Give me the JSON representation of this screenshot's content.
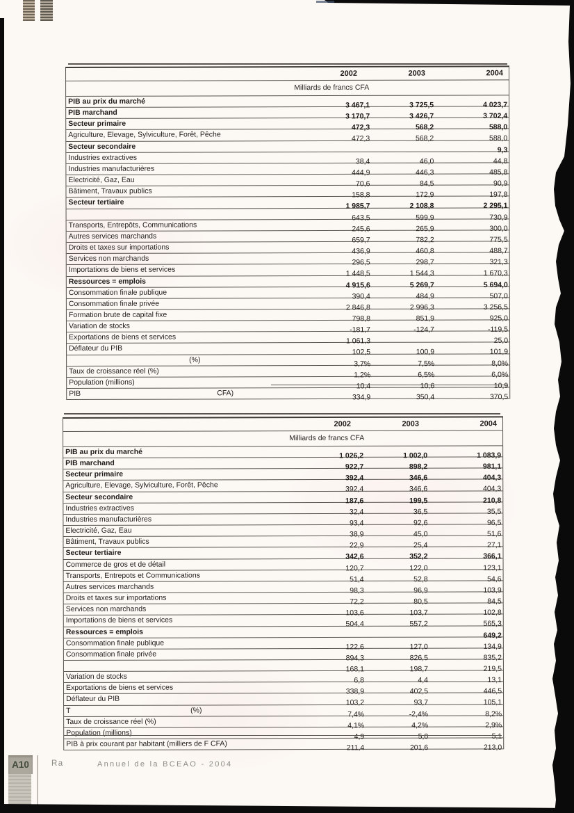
{
  "document": {
    "footer": {
      "page_number": "A10",
      "left_text": "Ra",
      "title_text": "Annuel de la BCEAO - 2004"
    }
  },
  "tables": [
    {
      "name": "comptes-nationaux-table-1",
      "years": [
        "2002",
        "2003",
        "2004"
      ],
      "unit": "Milliards de francs CFA",
      "rows": [
        {
          "label": "PIB au prix du marché",
          "bold": true,
          "values": [
            "3 467,1",
            "3 725,5",
            "4 023,7"
          ]
        },
        {
          "label": "PIB marchand",
          "bold": true,
          "values": [
            "3 170,7",
            "3 426,7",
            "3 702,4"
          ]
        },
        {
          "label": "Secteur primaire",
          "bold": true,
          "values": [
            "472,3",
            "568,2",
            "588,0"
          ]
        },
        {
          "label": "Agriculture, Elevage, Sylviculture,  Forêt, Pêche",
          "values": [
            "472,3",
            "568,2",
            "588,0"
          ]
        },
        {
          "label": "Secteur secondaire",
          "bold": true,
          "values": [
            "",
            "",
            "9,3"
          ]
        },
        {
          "label": "Industries extractives",
          "values": [
            "38,4",
            "46,0",
            "44,8"
          ]
        },
        {
          "label": "Industries manufacturières",
          "values": [
            "444,9",
            "446,3",
            "485,8"
          ]
        },
        {
          "label": "Electricité, Gaz, Eau",
          "values": [
            "70,6",
            "84,5",
            "90,9"
          ]
        },
        {
          "label": "Bâtiment, Travaux publics",
          "values": [
            "158,8",
            "172,9",
            "197,8"
          ]
        },
        {
          "label": "Secteur tertiaire",
          "bold": true,
          "values": [
            "1 985,7",
            "2 108,8",
            "2 295,1"
          ]
        },
        {
          "label": "",
          "values": [
            "643,5",
            "599,9",
            "730,9"
          ]
        },
        {
          "label": "Transports, Entrepôts, Communications",
          "values": [
            "245,6",
            "265,9",
            "300,0"
          ]
        },
        {
          "label": "Autres services marchands",
          "values": [
            "659,7",
            "782,2",
            "775,5"
          ]
        },
        {
          "label": "Droits et taxes sur importations",
          "values": [
            "436,9",
            "460,8",
            "488,7"
          ]
        },
        {
          "label": "Services non marchands",
          "values": [
            "296,5",
            "298,7",
            "321,3"
          ]
        },
        {
          "label": "Importations de biens et services",
          "values": [
            "1 448,5",
            "1 544,3",
            "1 670,3"
          ]
        },
        {
          "label": "Ressources = emplois",
          "bold": true,
          "values": [
            "4 915,6",
            "5 269,7",
            "5 694,0"
          ]
        },
        {
          "label": "Consommation finale publique",
          "values": [
            "390,4",
            "484,9",
            "507,0"
          ]
        },
        {
          "label": "Consommation finale privée",
          "values": [
            "2 846,8",
            "2 996,3",
            "3 256,5"
          ]
        },
        {
          "label": "Formation brute de capital fixe",
          "values": [
            "798,8",
            "851,9",
            "925,0"
          ]
        },
        {
          "label": "Variation de stocks",
          "values": [
            "-181,7",
            "-124,7",
            "-119,5"
          ]
        },
        {
          "label": "Exportations de biens et services",
          "values": [
            "1 061,3",
            "",
            "25,0"
          ]
        },
        {
          "label": "Déflateur du PIB",
          "values": [
            "102,5",
            "100,9",
            "101,9"
          ]
        },
        {
          "label": "",
          "label2": "(%)",
          "label2_x": 176,
          "values": [
            "3,7%",
            "7,5%",
            "8,0%"
          ]
        },
        {
          "label": "Taux de croissance réel (%)",
          "values": [
            "1,2%",
            "6,5%",
            "6,0%"
          ]
        },
        {
          "label": "Population (millions)",
          "values": [
            "10,4",
            "10,6",
            "10,9"
          ]
        },
        {
          "label": "PIB",
          "label2": "CFA)",
          "label2_x": 216,
          "values": [
            "334,9",
            "350,4",
            "370,5"
          ]
        }
      ]
    },
    {
      "name": "comptes-nationaux-table-2",
      "years": [
        "2002",
        "2003",
        "2004"
      ],
      "unit": "Milliards de francs CFA",
      "rows": [
        {
          "label": "PIB au prix du marché",
          "bold": true,
          "values": [
            "1 026,2",
            "1 002,0",
            "1 083,9"
          ]
        },
        {
          "label": "PIB marchand",
          "bold": true,
          "values": [
            "922,7",
            "898,2",
            "981,1"
          ]
        },
        {
          "label": "Secteur primaire",
          "bold": true,
          "values": [
            "392,4",
            "346,6",
            "404,3"
          ]
        },
        {
          "label": "Agriculture, Elevage, Sylviculture,  Forêt, Pêche",
          "values": [
            "392,4",
            "346,6",
            "404,3"
          ]
        },
        {
          "label": "Secteur secondaire",
          "bold": true,
          "values": [
            "187,6",
            "199,5",
            "210,8"
          ]
        },
        {
          "label": "Industries extractives",
          "values": [
            "32,4",
            "36,5",
            "35,5"
          ]
        },
        {
          "label": "Industries manufacturières",
          "values": [
            "93,4",
            "92,6",
            "96,5"
          ]
        },
        {
          "label": "Electricité, Gaz, Eau",
          "values": [
            "38,9",
            "45,0",
            "51,6"
          ]
        },
        {
          "label": "Bâtiment, Travaux publics",
          "values": [
            "22,9",
            "25,4",
            "27,1"
          ]
        },
        {
          "label": "Secteur tertiaire",
          "bold": true,
          "values": [
            "342,6",
            "352,2",
            "366,1"
          ]
        },
        {
          "label": "Commerce de gros et de détail",
          "values": [
            "120,7",
            "122,0",
            "123,1"
          ]
        },
        {
          "label": "Transports, Entrepots et Communications",
          "values": [
            "51,4",
            "52,8",
            "54,6"
          ]
        },
        {
          "label": "Autres services marchands",
          "values": [
            "98,3",
            "96,9",
            "103,9"
          ]
        },
        {
          "label": "Droits et taxes sur importations",
          "values": [
            "72,2",
            "80,5",
            "84,5"
          ]
        },
        {
          "label": "Services non marchands",
          "values": [
            "103,6",
            "103,7",
            "102,8"
          ]
        },
        {
          "label": "Importations de biens et services",
          "values": [
            "504,4",
            "557,2",
            "565,3"
          ]
        },
        {
          "label": "Ressources = emplois",
          "bold": true,
          "values": [
            "",
            "",
            "649,2"
          ]
        },
        {
          "label": "Consommation finale publique",
          "values": [
            "122,6",
            "127,0",
            "134,9"
          ]
        },
        {
          "label": "Consommation finale privée",
          "values": [
            "894,3",
            "826,5",
            "835,2"
          ]
        },
        {
          "label": "",
          "values": [
            "168,1",
            "198,7",
            "219,5"
          ]
        },
        {
          "label": "Variation de stocks",
          "values": [
            "6,8",
            "4,4",
            "13,1"
          ]
        },
        {
          "label": "Exportations de biens et services",
          "values": [
            "338,9",
            "402,5",
            "446,5"
          ]
        },
        {
          "label": "Déflateur du PIB",
          "values": [
            "103,2",
            "93,7",
            "105,1"
          ]
        },
        {
          "label": "T",
          "label2": "(%)",
          "label2_x": 182,
          "values": [
            "7,4%",
            "-2,4%",
            "8,2%"
          ]
        },
        {
          "label": "Taux de croissance réel (%)",
          "values": [
            "4,1%",
            "4,2%",
            "2,9%"
          ]
        },
        {
          "label": "Population (millions)",
          "values": [
            "4,9",
            "5,0",
            "5,1"
          ]
        },
        {
          "label": "PIB à prix courant par habitant (milliers de F CFA)",
          "values": [
            "211,4",
            "201,6",
            "213,0"
          ]
        }
      ]
    }
  ]
}
